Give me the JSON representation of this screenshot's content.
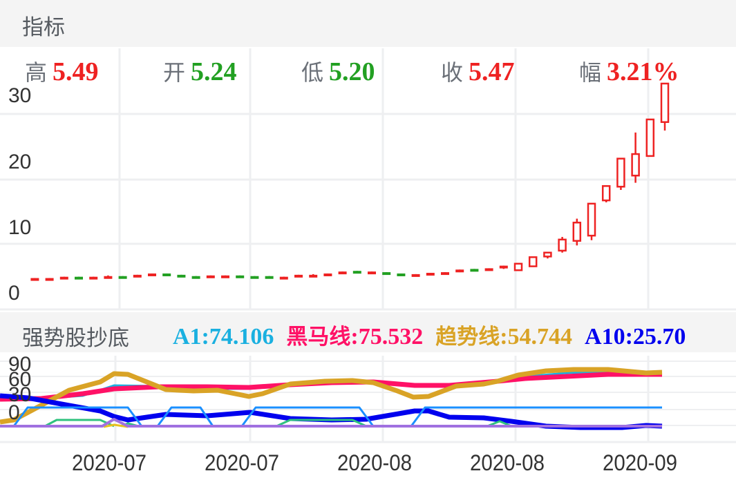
{
  "header": {
    "title": "指标"
  },
  "ohlc": [
    {
      "label": "高",
      "value": "5.49",
      "color": "#ee2222"
    },
    {
      "label": "开",
      "value": "5.24",
      "color": "#22a022"
    },
    {
      "label": "低",
      "value": "5.20",
      "color": "#22a022"
    },
    {
      "label": "收",
      "value": "5.47",
      "color": "#ee2222"
    },
    {
      "label": "幅",
      "value": "3.21%",
      "color": "#ee2222"
    }
  ],
  "indicator": {
    "title": "强势股抄底",
    "values": [
      {
        "label": "A1",
        "value": "74.106",
        "text": "A1:74.106",
        "color": "#1ab0e0"
      },
      {
        "label": "黑马线",
        "value": "75.532",
        "text_cn": "黑马线",
        "text_num": ":75.532",
        "color": "#ff1166"
      },
      {
        "label": "趋势线",
        "value": "54.744",
        "text_cn": "趋势线",
        "text_num": ":54.744",
        "color": "#d9a326"
      },
      {
        "label": "A10",
        "value": "25.70",
        "text": "A10:25.70",
        "color": "#0000ee"
      }
    ]
  },
  "colors": {
    "up": "#ee2222",
    "down": "#22a022",
    "grid": "#eeeff1"
  },
  "chart_data": [
    {
      "type": "candlestick",
      "title": "",
      "ylabel": "",
      "yticks": [
        "0",
        "10",
        "20",
        "30"
      ],
      "ylim": [
        0,
        32
      ],
      "xticks": [
        "2020-07",
        "2020-07",
        "2020-08",
        "2020-08",
        "2020-09"
      ],
      "grid": true,
      "candles": [
        {
          "o": 4.6,
          "h": 4.7,
          "l": 4.5,
          "c": 4.7,
          "d": "up"
        },
        {
          "o": 4.6,
          "h": 4.7,
          "l": 4.5,
          "c": 4.7,
          "d": "up"
        },
        {
          "o": 4.7,
          "h": 4.9,
          "l": 4.7,
          "c": 4.9,
          "d": "up"
        },
        {
          "o": 4.9,
          "h": 4.9,
          "l": 4.8,
          "c": 4.8,
          "d": "down"
        },
        {
          "o": 4.8,
          "h": 4.9,
          "l": 4.8,
          "c": 4.9,
          "d": "up"
        },
        {
          "o": 4.9,
          "h": 5.1,
          "l": 4.9,
          "c": 5.0,
          "d": "up"
        },
        {
          "o": 5.0,
          "h": 5.0,
          "l": 4.9,
          "c": 4.9,
          "d": "down"
        },
        {
          "o": 4.9,
          "h": 5.2,
          "l": 4.9,
          "c": 5.2,
          "d": "up"
        },
        {
          "o": 5.1,
          "h": 5.4,
          "l": 5.1,
          "c": 5.4,
          "d": "up"
        },
        {
          "o": 5.4,
          "h": 5.4,
          "l": 5.2,
          "c": 5.2,
          "d": "down"
        },
        {
          "o": 5.2,
          "h": 5.2,
          "l": 5.0,
          "c": 5.0,
          "d": "down"
        },
        {
          "o": 5.0,
          "h": 5.0,
          "l": 4.9,
          "c": 4.9,
          "d": "down"
        },
        {
          "o": 4.9,
          "h": 5.1,
          "l": 4.9,
          "c": 5.1,
          "d": "up"
        },
        {
          "o": 5.0,
          "h": 5.1,
          "l": 5.0,
          "c": 5.1,
          "d": "up"
        },
        {
          "o": 5.1,
          "h": 5.1,
          "l": 5.0,
          "c": 5.0,
          "d": "down"
        },
        {
          "o": 5.0,
          "h": 5.0,
          "l": 4.9,
          "c": 4.9,
          "d": "down"
        },
        {
          "o": 4.9,
          "h": 5.0,
          "l": 4.9,
          "c": 5.0,
          "d": "down"
        },
        {
          "o": 4.8,
          "h": 4.9,
          "l": 4.8,
          "c": 4.9,
          "d": "up"
        },
        {
          "o": 4.9,
          "h": 5.2,
          "l": 4.9,
          "c": 5.2,
          "d": "up"
        },
        {
          "o": 5.1,
          "h": 5.3,
          "l": 5.1,
          "c": 5.2,
          "d": "up"
        },
        {
          "o": 5.2,
          "h": 5.4,
          "l": 5.2,
          "c": 5.4,
          "d": "up"
        },
        {
          "o": 5.3,
          "h": 5.7,
          "l": 5.3,
          "c": 5.7,
          "d": "up"
        },
        {
          "o": 5.8,
          "h": 5.8,
          "l": 5.5,
          "c": 5.5,
          "d": "down"
        },
        {
          "o": 5.6,
          "h": 5.7,
          "l": 5.5,
          "c": 5.7,
          "d": "up"
        },
        {
          "o": 5.6,
          "h": 5.6,
          "l": 5.4,
          "c": 5.4,
          "d": "down"
        },
        {
          "o": 5.4,
          "h": 5.4,
          "l": 5.3,
          "c": 5.3,
          "d": "down"
        },
        {
          "o": 5.2,
          "h": 5.3,
          "l": 5.2,
          "c": 5.3,
          "d": "up"
        },
        {
          "o": 5.2,
          "h": 5.5,
          "l": 5.2,
          "c": 5.5,
          "d": "up"
        },
        {
          "o": 5.3,
          "h": 5.6,
          "l": 5.3,
          "c": 5.6,
          "d": "up"
        },
        {
          "o": 5.6,
          "h": 6.0,
          "l": 5.6,
          "c": 6.0,
          "d": "up"
        },
        {
          "o": 6.0,
          "h": 6.1,
          "l": 5.9,
          "c": 6.1,
          "d": "down"
        },
        {
          "o": 6.0,
          "h": 6.2,
          "l": 6.0,
          "c": 6.2,
          "d": "up"
        },
        {
          "o": 6.3,
          "h": 6.6,
          "l": 6.1,
          "c": 6.6,
          "d": "up"
        },
        {
          "o": 5.9,
          "h": 6.9,
          "l": 5.8,
          "c": 6.9,
          "d": "up"
        },
        {
          "o": 6.5,
          "h": 7.9,
          "l": 6.4,
          "c": 7.9,
          "d": "up"
        },
        {
          "o": 8.0,
          "h": 8.6,
          "l": 7.7,
          "c": 8.6,
          "d": "up"
        },
        {
          "o": 8.9,
          "h": 11.0,
          "l": 8.6,
          "c": 10.6,
          "d": "up"
        },
        {
          "o": 10.4,
          "h": 13.8,
          "l": 9.7,
          "c": 13.2,
          "d": "up"
        },
        {
          "o": 11.2,
          "h": 16.1,
          "l": 10.5,
          "c": 16.1,
          "d": "up"
        },
        {
          "o": 16.6,
          "h": 18.9,
          "l": 16.3,
          "c": 18.8,
          "d": "up"
        },
        {
          "o": 18.7,
          "h": 23.0,
          "l": 18.2,
          "c": 23.0,
          "d": "up"
        },
        {
          "o": 20.4,
          "h": 27.0,
          "l": 19.3,
          "c": 23.7,
          "d": "up"
        },
        {
          "o": 23.4,
          "h": 29.0,
          "l": 23.3,
          "c": 29.0,
          "d": "up"
        },
        {
          "o": 28.6,
          "h": 34.5,
          "l": 27.3,
          "c": 34.5,
          "d": "up"
        }
      ]
    },
    {
      "type": "line",
      "title": "强势股抄底",
      "yticks": [
        "0",
        "30",
        "60",
        "90"
      ],
      "xticks": [
        "2020-07",
        "2020-07",
        "2020-08",
        "2020-08",
        "2020-09"
      ],
      "grid": true,
      "series": [
        {
          "name": "A1",
          "color": "#1ab0e0",
          "last": 74.106
        },
        {
          "name": "黑马线",
          "color": "#ff1166",
          "last": 75.532
        },
        {
          "name": "趋势线",
          "color": "#d9a326",
          "last": 54.744
        },
        {
          "name": "A10",
          "color": "#0000ee",
          "last": 25.7
        }
      ]
    }
  ]
}
